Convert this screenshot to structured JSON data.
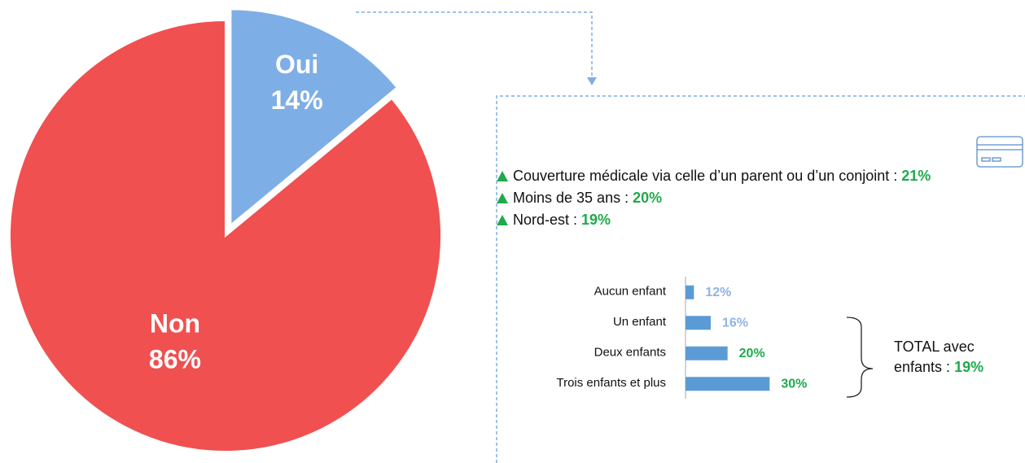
{
  "chart_data": [
    {
      "type": "pie",
      "categories": [
        "Oui",
        "Non"
      ],
      "values": [
        14,
        86
      ],
      "value_labels": [
        "14%",
        "86%"
      ],
      "colors": [
        "#7eaee6",
        "#f05050"
      ]
    },
    {
      "type": "barh",
      "categories": [
        "Aucun enfant",
        "Un enfant",
        "Deux enfants",
        "Trois enfants et plus"
      ],
      "values": [
        12,
        16,
        20,
        30
      ],
      "value_labels": [
        "12%",
        "16%",
        "20%",
        "30%"
      ],
      "color": "#5b9bd5",
      "label_colors": [
        "#8fb4e3",
        "#8fb4e3",
        "#1faa4b",
        "#1faa4b"
      ],
      "xlim": [
        10,
        40
      ]
    }
  ],
  "callout": {
    "items": [
      {
        "text": "Couverture médicale via celle d’un parent ou d’un conjoint : ",
        "value": "21%"
      },
      {
        "text": "Moins de 35 ans  : ",
        "value": "20%"
      },
      {
        "text": "Nord-est : ",
        "value": "19%"
      }
    ],
    "total": {
      "text": "TOTAL avec enfants : ",
      "value": "19%"
    }
  }
}
